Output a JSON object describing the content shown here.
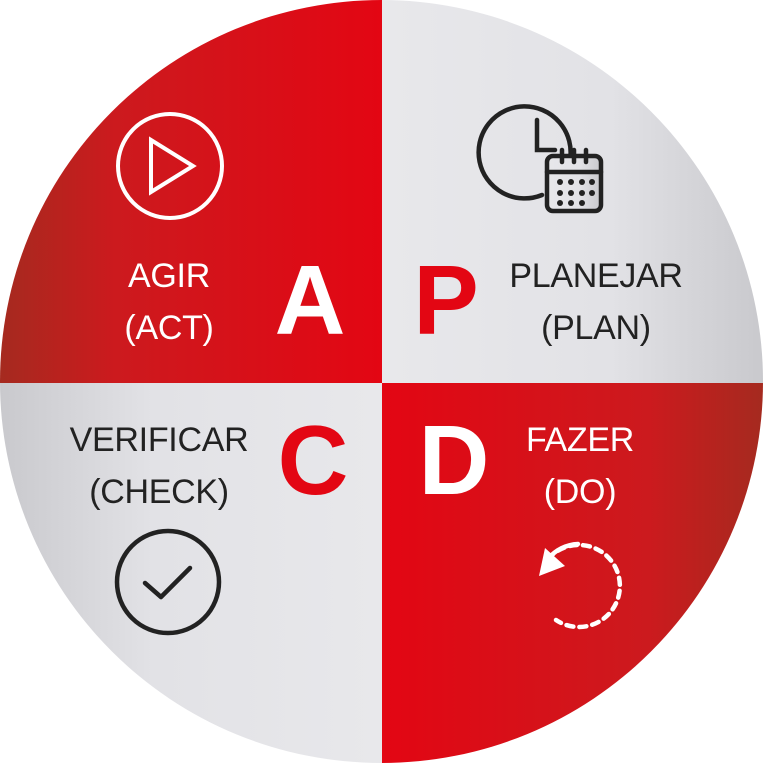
{
  "diagram": {
    "quadrants": {
      "act": {
        "letter": "A",
        "label": "AGIR",
        "sublabel": "(ACT)",
        "icon": "play-circle-icon"
      },
      "plan": {
        "letter": "P",
        "label": "PLANEJAR",
        "sublabel": "(PLAN)",
        "icon": "clock-calendar-icon"
      },
      "check": {
        "letter": "C",
        "label": "VERIFICAR",
        "sublabel": "(CHECK)",
        "icon": "check-circle-icon"
      },
      "do": {
        "letter": "D",
        "label": "FAZER",
        "sublabel": "(DO)",
        "icon": "dashed-rotate-arrow-icon"
      }
    },
    "colors": {
      "red": "#e30613",
      "dark_red": "#a52a1f",
      "light_gray": "#e6e6e9",
      "dark_text": "#222222",
      "white": "#ffffff"
    }
  }
}
